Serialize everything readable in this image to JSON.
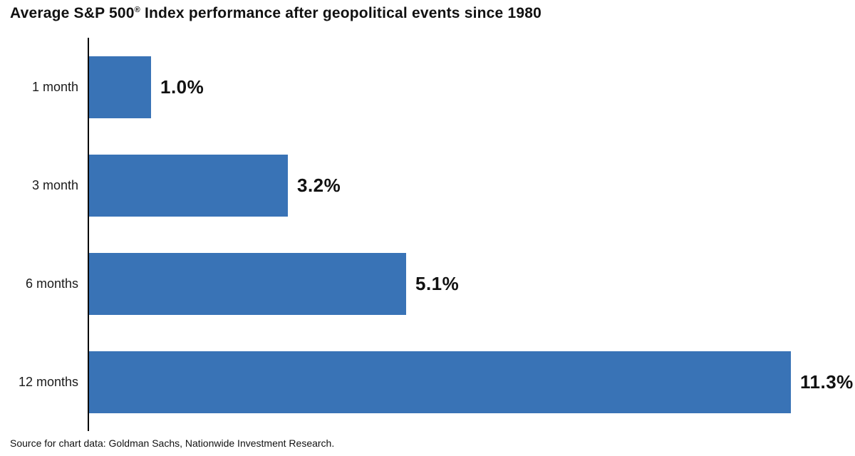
{
  "header": {
    "title_pre": "Average S&P 500",
    "title_reg_mark": "®",
    "title_post": " Index performance after geopolitical events since 1980"
  },
  "footer": {
    "source": "Source for chart data: Goldman Sachs, Nationwide Investment Research."
  },
  "chart_data": {
    "type": "bar",
    "orientation": "horizontal",
    "title": "Average S&P 500® Index performance after geopolitical events since 1980",
    "categories": [
      "1 month",
      "3 month",
      "6 months",
      "12 months"
    ],
    "values": [
      1.0,
      3.2,
      5.1,
      11.3
    ],
    "value_labels": [
      "1.0%",
      "3.2%",
      "5.1%",
      "11.3%"
    ],
    "xlabel": "",
    "ylabel": "",
    "xlim": [
      0,
      11.3
    ],
    "grid": false,
    "legend": "none",
    "bar_color": "#3973b6",
    "axis_color": "#000000",
    "source": "Source for chart data: Goldman Sachs, Nationwide Investment Research."
  }
}
